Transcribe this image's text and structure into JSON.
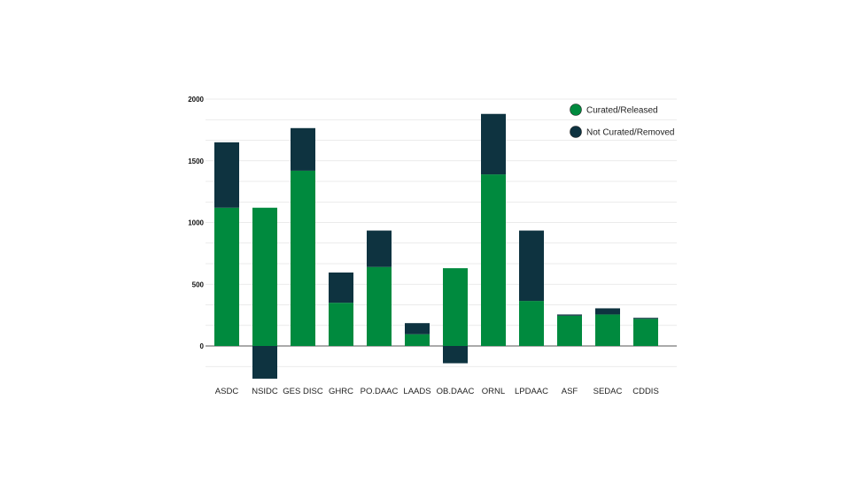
{
  "chart_data": {
    "type": "bar",
    "stacked": true,
    "categories": [
      "ASDC",
      "NSIDC",
      "GES DISC",
      "GHRC",
      "PO.DAAC",
      "LAADS",
      "OB.DAAC",
      "ORNL",
      "LPDAAC",
      "ASF",
      "SEDAC",
      "CDDIS"
    ],
    "series": [
      {
        "name": "Curated/Released",
        "color": "#008a3e",
        "values": [
          1120,
          1120,
          1420,
          350,
          640,
          95,
          630,
          1390,
          365,
          245,
          255,
          220
        ]
      },
      {
        "name": "Not Curated/Removed",
        "color": "#0e3340",
        "values": [
          530,
          -265,
          345,
          245,
          295,
          90,
          -140,
          490,
          570,
          10,
          50,
          8
        ]
      }
    ],
    "yticks": [
      "2000",
      "1500",
      "1000",
      "500",
      "0"
    ],
    "ylim": [
      -170,
      2000
    ],
    "grid": true,
    "legend": "top-right",
    "title": "",
    "xlabel": "",
    "ylabel": ""
  }
}
